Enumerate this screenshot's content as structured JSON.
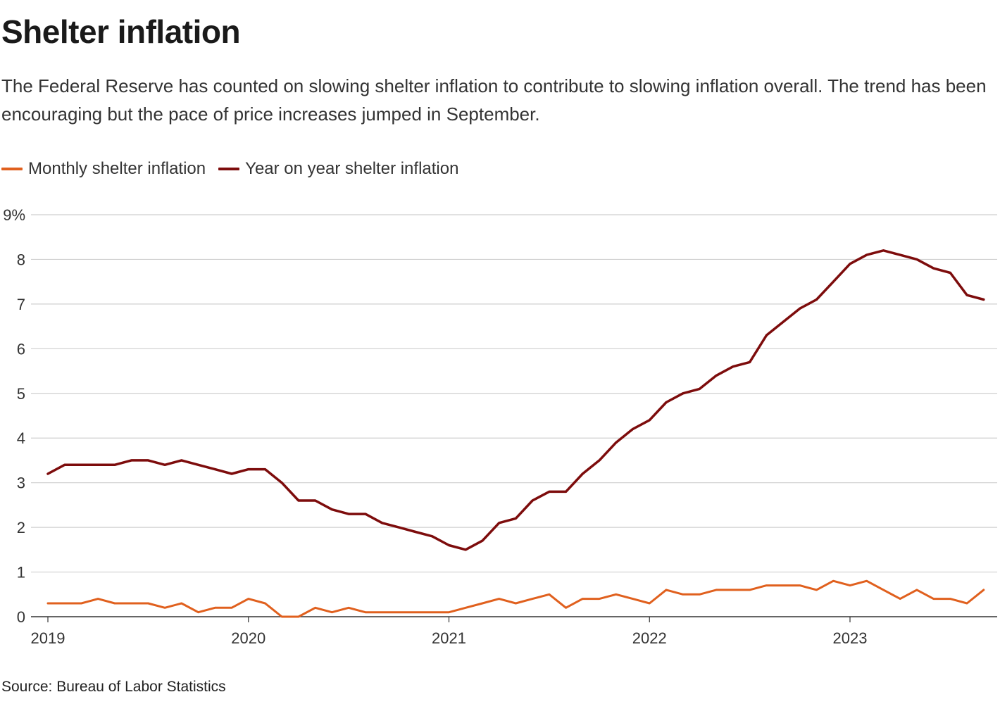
{
  "title": "Shelter inflation",
  "subtitle": "The Federal Reserve has counted on slowing shelter inflation to contribute to slowing inflation overall. The trend has been encouraging but the pace of price increases jumped in September.",
  "source": "Source: Bureau of Labor Statistics",
  "colors": {
    "monthly": "#e0601e",
    "yoy": "#7d0c0c",
    "grid": "#cfcfcf",
    "axis": "#333333"
  },
  "chart_data": {
    "type": "line",
    "x_start": "2019-01",
    "x_end": "2023-09",
    "y_ticks": [
      "0",
      "1",
      "2",
      "3",
      "4",
      "5",
      "6",
      "7",
      "8",
      "9%"
    ],
    "x_ticks": [
      "2019",
      "2020",
      "2021",
      "2022",
      "2023"
    ],
    "ylim": [
      0,
      9
    ],
    "grid": "horizontal",
    "legend_position": "top-left",
    "series": [
      {
        "name": "Monthly shelter inflation",
        "color": "#e0601e",
        "values": [
          0.3,
          0.3,
          0.3,
          0.4,
          0.3,
          0.3,
          0.3,
          0.2,
          0.3,
          0.1,
          0.2,
          0.2,
          0.4,
          0.3,
          0.0,
          0.0,
          0.2,
          0.1,
          0.2,
          0.1,
          0.1,
          0.1,
          0.1,
          0.1,
          0.1,
          0.2,
          0.3,
          0.4,
          0.3,
          0.4,
          0.5,
          0.2,
          0.4,
          0.4,
          0.5,
          0.4,
          0.3,
          0.6,
          0.5,
          0.5,
          0.6,
          0.6,
          0.6,
          0.7,
          0.7,
          0.7,
          0.6,
          0.8,
          0.7,
          0.8,
          0.6,
          0.4,
          0.6,
          0.4,
          0.4,
          0.3,
          0.6
        ]
      },
      {
        "name": "Year on year shelter inflation",
        "color": "#7d0c0c",
        "values": [
          3.2,
          3.4,
          3.4,
          3.4,
          3.4,
          3.5,
          3.5,
          3.4,
          3.5,
          3.4,
          3.3,
          3.2,
          3.3,
          3.3,
          3.0,
          2.6,
          2.6,
          2.4,
          2.3,
          2.3,
          2.1,
          2.0,
          1.9,
          1.8,
          1.6,
          1.5,
          1.7,
          2.1,
          2.2,
          2.6,
          2.8,
          2.8,
          3.2,
          3.5,
          3.9,
          4.2,
          4.4,
          4.8,
          5.0,
          5.1,
          5.4,
          5.6,
          5.7,
          6.3,
          6.6,
          6.9,
          7.1,
          7.5,
          7.9,
          8.1,
          8.2,
          8.1,
          8.0,
          7.8,
          7.7,
          7.2,
          7.1
        ]
      }
    ]
  }
}
